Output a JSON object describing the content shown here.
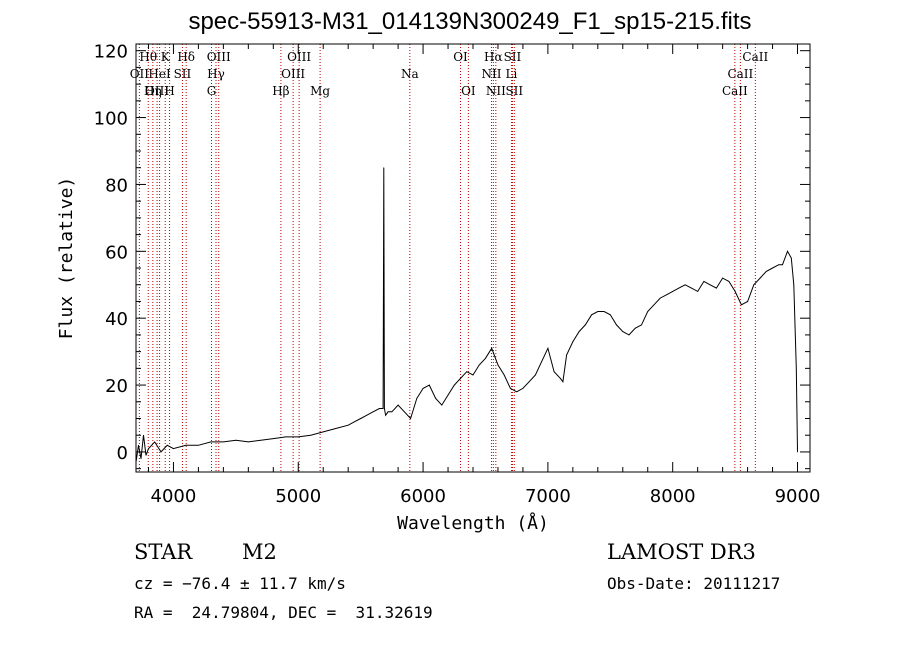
{
  "chart_data": {
    "type": "line",
    "title": "spec-55913-M31_014139N300249_F1_sp15-215.fits",
    "xlabel": "Wavelength (Å)",
    "ylabel": "Flux (relative)",
    "xlim": [
      3700,
      9100
    ],
    "ylim": [
      -6,
      122
    ],
    "xticks": [
      4000,
      5000,
      6000,
      7000,
      8000,
      9000
    ],
    "yticks": [
      0,
      20,
      40,
      60,
      80,
      100,
      120
    ],
    "series": [
      {
        "name": "flux",
        "x": [
          3700,
          3720,
          3740,
          3760,
          3780,
          3800,
          3850,
          3900,
          3950,
          4000,
          4100,
          4200,
          4300,
          4400,
          4500,
          4600,
          4700,
          4800,
          4900,
          5000,
          5100,
          5200,
          5300,
          5400,
          5450,
          5500,
          5550,
          5600,
          5650,
          5680,
          5685,
          5690,
          5695,
          5700,
          5720,
          5750,
          5800,
          5850,
          5900,
          5950,
          6000,
          6050,
          6100,
          6150,
          6200,
          6250,
          6300,
          6350,
          6400,
          6450,
          6500,
          6550,
          6600,
          6650,
          6700,
          6750,
          6800,
          6850,
          6900,
          6950,
          7000,
          7050,
          7100,
          7120,
          7150,
          7200,
          7250,
          7300,
          7350,
          7400,
          7450,
          7500,
          7550,
          7600,
          7650,
          7700,
          7750,
          7800,
          7850,
          7900,
          7950,
          8000,
          8050,
          8100,
          8150,
          8200,
          8250,
          8300,
          8350,
          8400,
          8450,
          8500,
          8550,
          8600,
          8650,
          8700,
          8750,
          8800,
          8850,
          8880,
          8900,
          8920,
          8950,
          8970,
          8990,
          9000
        ],
        "y": [
          -3,
          2,
          -2,
          5,
          -1,
          1,
          3,
          0,
          2,
          1,
          2,
          2,
          3,
          3,
          3.5,
          3,
          3.5,
          4,
          4.5,
          4.5,
          5,
          6,
          7,
          8,
          9,
          10,
          11,
          12,
          13,
          13,
          85,
          13,
          12,
          11,
          12,
          12,
          14,
          12,
          10,
          16,
          19,
          20,
          16,
          14,
          17,
          20,
          22,
          24,
          23,
          26,
          28,
          31,
          26,
          23,
          19,
          18,
          19,
          21,
          23,
          27,
          31,
          24,
          22,
          21,
          29,
          33,
          36,
          38,
          41,
          42,
          42,
          41,
          38,
          36,
          35,
          37,
          38,
          42,
          44,
          46,
          47,
          48,
          49,
          50,
          49,
          48,
          51,
          50,
          49,
          52,
          51,
          48,
          44,
          45,
          50,
          52,
          54,
          55,
          56,
          56,
          58,
          60,
          58,
          50,
          25,
          0
        ]
      }
    ],
    "emission_lines": [
      {
        "label": "Hθ",
        "x": 3798,
        "row": 1
      },
      {
        "label": "OII",
        "x": 3727,
        "row": 2
      },
      {
        "label": "OIII",
        "x": 3869,
        "row": 3
      },
      {
        "label": "K",
        "x": 3934,
        "row": 1
      },
      {
        "label": "HeI",
        "x": 3889,
        "row": 2
      },
      {
        "label": "Hη",
        "x": 3835,
        "row": 3
      },
      {
        "label": "Hδ",
        "x": 4102,
        "row": 1
      },
      {
        "label": "SII",
        "x": 4072,
        "row": 2
      },
      {
        "label": "H",
        "x": 3969,
        "row": 3
      },
      {
        "label": "OIII",
        "x": 4363,
        "row": 1
      },
      {
        "label": "Hγ",
        "x": 4341,
        "row": 2
      },
      {
        "label": "G",
        "x": 4305,
        "row": 3
      },
      {
        "label": "OIII",
        "x": 5007,
        "row": 1
      },
      {
        "label": "OIII",
        "x": 4959,
        "row": 2
      },
      {
        "label": "Hβ",
        "x": 4861,
        "row": 3
      },
      {
        "label": "Mg",
        "x": 5175,
        "row": 3
      },
      {
        "label": "Na",
        "x": 5894,
        "row": 2
      },
      {
        "label": "OI",
        "x": 6300,
        "row": 1
      },
      {
        "label": "OI",
        "x": 6363,
        "row": 3
      },
      {
        "label": "Hα",
        "x": 6563,
        "row": 1
      },
      {
        "label": "SII",
        "x": 6716,
        "row": 1
      },
      {
        "label": "NII",
        "x": 6548,
        "row": 2
      },
      {
        "label": "Li",
        "x": 6708,
        "row": 2
      },
      {
        "label": "NII",
        "x": 6583,
        "row": 3
      },
      {
        "label": "SII",
        "x": 6731,
        "row": 3
      },
      {
        "label": "CaII",
        "x": 8662,
        "row": 1
      },
      {
        "label": "CaII",
        "x": 8542,
        "row": 2
      },
      {
        "label": "CaII",
        "x": 8498,
        "row": 3
      }
    ]
  },
  "footer": {
    "class_label": "STAR",
    "subclass_label": "M2",
    "cz_text": "cz = −76.4 ± 11.7 km/s",
    "coords_text": "RA =  24.79804, DEC =  31.32619",
    "survey_label": "LAMOST DR3",
    "obs_date_text": "Obs-Date: 20111217"
  }
}
